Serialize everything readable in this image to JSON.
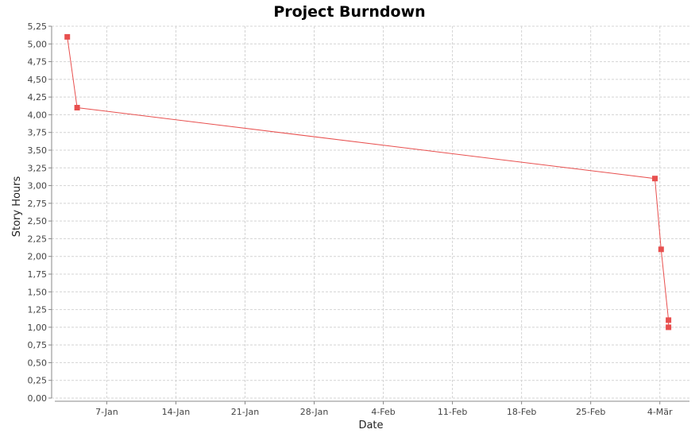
{
  "chart_data": {
    "type": "line",
    "title": "Project Burndown",
    "xlabel": "Date",
    "ylabel": "Story Hours",
    "x_tick_labels": [
      "7-Jan",
      "14-Jan",
      "21-Jan",
      "28-Jan",
      "4-Feb",
      "11-Feb",
      "18-Feb",
      "25-Feb",
      "4-Mär"
    ],
    "y_tick_labels": [
      "0,00",
      "0,25",
      "0,50",
      "0,75",
      "1,00",
      "1,25",
      "1,50",
      "1,75",
      "2,00",
      "2,25",
      "2,50",
      "2,75",
      "3,00",
      "3,25",
      "3,50",
      "3,75",
      "4,00",
      "4,25",
      "4,50",
      "4,75",
      "5,00",
      "5,25"
    ],
    "ylim": [
      0,
      5.25
    ],
    "xlim": [
      "2008-01-01 10:00",
      "2008-03-06 00:00"
    ],
    "grid": true,
    "series": [
      {
        "color": "#e8504f",
        "points": [
          {
            "x": "2008-01-03",
            "y": 5.1
          },
          {
            "x": "2008-01-04",
            "y": 4.1
          },
          {
            "x": "2008-03-02 12:00",
            "y": 3.1
          },
          {
            "x": "2008-03-03 03:00",
            "y": 2.1
          },
          {
            "x": "2008-03-03 21:00",
            "y": 1.1
          },
          {
            "x": "2008-03-03 21:00",
            "y": 1.0
          }
        ]
      }
    ]
  }
}
